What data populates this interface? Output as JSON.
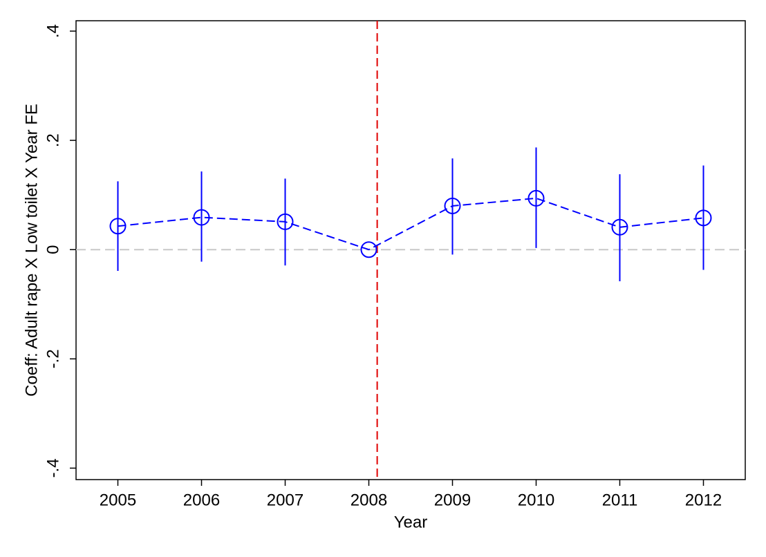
{
  "chart_data": {
    "type": "line",
    "x_label": "Year",
    "y_label": "Coeff: Adult rape X Low toilet X Year FE",
    "x": [
      2005,
      2006,
      2007,
      2008,
      2009,
      2010,
      2011,
      2012
    ],
    "series": [
      {
        "color": "#0000ff",
        "values": [
          0.043,
          0.059,
          0.051,
          0,
          0.08,
          0.094,
          0.041,
          0.058
        ],
        "ci_lower": [
          -0.039,
          -0.022,
          -0.029,
          0,
          -0.009,
          0.003,
          -0.058,
          -0.037
        ],
        "ci_upper": [
          0.125,
          0.143,
          0.13,
          0,
          0.167,
          0.187,
          0.138,
          0.154
        ]
      }
    ],
    "xlim": [
      2004.5,
      2012.5
    ],
    "xticks": [
      2005,
      2006,
      2007,
      2008,
      2009,
      2010,
      2011,
      2012
    ],
    "ylim": [
      -0.421,
      0.419
    ],
    "yticks": [
      {
        "value": -0.4,
        "label": "-.4"
      },
      {
        "value": -0.2,
        "label": "-.2"
      },
      0,
      {
        "value": 0.2,
        "label": ".2"
      },
      {
        "value": 0.4,
        "label": ".4"
      }
    ],
    "reference_lines": [
      {
        "y": 0,
        "color": "#c8c8c8"
      },
      {
        "x": 2008.1,
        "color": "#e00000"
      }
    ]
  }
}
